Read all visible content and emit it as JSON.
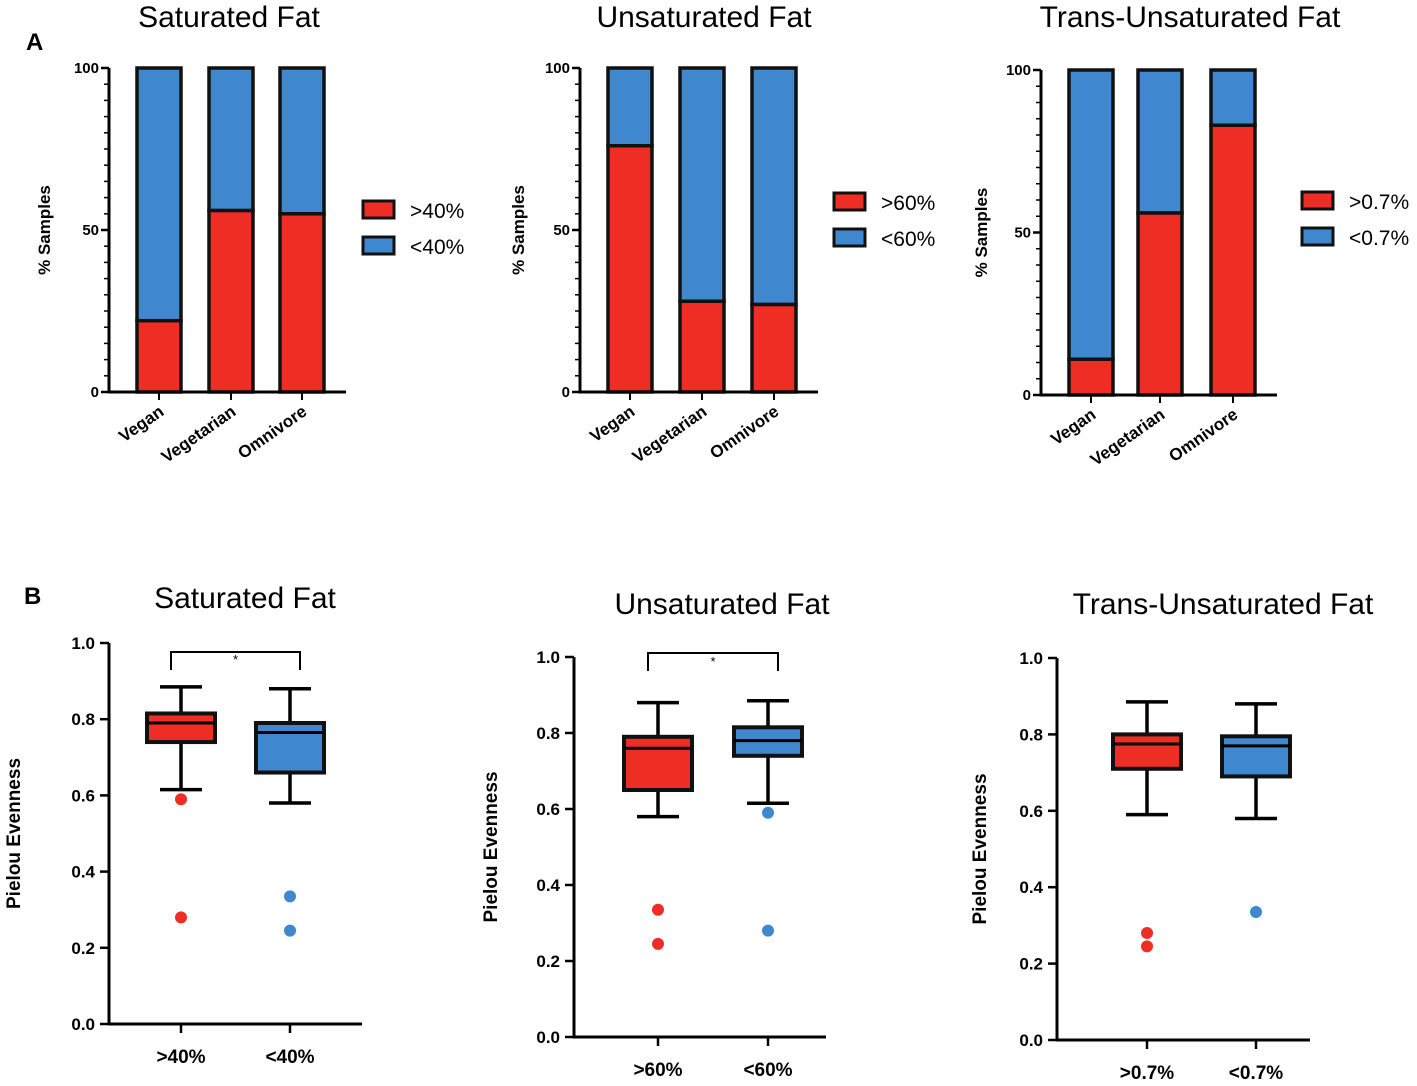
{
  "panels": {
    "a": "A",
    "b": "B"
  },
  "colors": {
    "red": "#ee2e24",
    "blue": "#3f87cf",
    "stroke": "#111111"
  },
  "chart_data": [
    {
      "type": "bar",
      "stacked": true,
      "panel": "A",
      "title": "Saturated Fat",
      "ylabel": "% Samples",
      "categories": [
        "Vegan",
        "Vegetarian",
        "Omnivore"
      ],
      "yticks": [
        "0",
        "50",
        "100"
      ],
      "ylim": [
        0,
        100
      ],
      "legend": ">40%",
      "legend2": "<40%",
      "series": [
        {
          "name": ">40%",
          "values": [
            22,
            56,
            55
          ]
        },
        {
          "name": "<40%",
          "values": [
            78,
            44,
            45
          ]
        }
      ]
    },
    {
      "type": "bar",
      "stacked": true,
      "panel": "A",
      "title": "Unsaturated Fat",
      "ylabel": "% Samples",
      "categories": [
        "Vegan",
        "Vegetarian",
        "Omnivore"
      ],
      "yticks": [
        "0",
        "50",
        "100"
      ],
      "ylim": [
        0,
        100
      ],
      "legend": ">60%",
      "legend2": "<60%",
      "series": [
        {
          "name": ">60%",
          "values": [
            76,
            28,
            27
          ]
        },
        {
          "name": "<60%",
          "values": [
            24,
            72,
            73
          ]
        }
      ]
    },
    {
      "type": "bar",
      "stacked": true,
      "panel": "A",
      "title": "Trans-Unsaturated Fat",
      "ylabel": "% Samples",
      "categories": [
        "Vegan",
        "Vegetarian",
        "Omnivore"
      ],
      "yticks": [
        "0",
        "50",
        "100"
      ],
      "ylim": [
        0,
        100
      ],
      "legend": ">0.7%",
      "legend2": "<0.7%",
      "series": [
        {
          "name": ">0.7%",
          "values": [
            11,
            56,
            83
          ]
        },
        {
          "name": "<0.7%",
          "values": [
            89,
            44,
            17
          ]
        }
      ]
    },
    {
      "type": "box",
      "panel": "B",
      "title": "Saturated Fat",
      "ylabel": "Pielou Evenness",
      "categories": [
        ">40%",
        "<40%"
      ],
      "yticks": [
        "0.0",
        "0.2",
        "0.4",
        "0.6",
        "0.8",
        "1.0"
      ],
      "ylim": [
        0,
        1.0
      ],
      "significance": "*",
      "boxes": [
        {
          "name": ">40%",
          "min": 0.615,
          "q1": 0.74,
          "median": 0.79,
          "q3": 0.815,
          "max": 0.885,
          "outliers": [
            0.59,
            0.28
          ]
        },
        {
          "name": "<40%",
          "min": 0.58,
          "q1": 0.66,
          "median": 0.765,
          "q3": 0.79,
          "max": 0.88,
          "outliers": [
            0.335,
            0.245
          ]
        }
      ]
    },
    {
      "type": "box",
      "panel": "B",
      "title": "Unsaturated Fat",
      "ylabel": "Pielou Evenness",
      "categories": [
        ">60%",
        "<60%"
      ],
      "yticks": [
        "0.0",
        "0.2",
        "0.4",
        "0.6",
        "0.8",
        "1.0"
      ],
      "ylim": [
        0,
        1.0
      ],
      "significance": "*",
      "boxes": [
        {
          "name": ">60%",
          "min": 0.58,
          "q1": 0.65,
          "median": 0.76,
          "q3": 0.79,
          "max": 0.88,
          "outliers": [
            0.335,
            0.245
          ]
        },
        {
          "name": "<60%",
          "min": 0.615,
          "q1": 0.74,
          "median": 0.78,
          "q3": 0.815,
          "max": 0.885,
          "outliers": [
            0.59,
            0.28
          ]
        }
      ]
    },
    {
      "type": "box",
      "panel": "B",
      "title": "Trans-Unsaturated Fat",
      "ylabel": "Pielou Evenness",
      "categories": [
        ">0.7%",
        "<0.7%"
      ],
      "yticks": [
        "0.0",
        "0.2",
        "0.4",
        "0.6",
        "0.8",
        "1.0"
      ],
      "ylim": [
        0,
        1.0
      ],
      "significance": "",
      "boxes": [
        {
          "name": ">0.7%",
          "min": 0.59,
          "q1": 0.71,
          "median": 0.775,
          "q3": 0.8,
          "max": 0.885,
          "outliers": [
            0.28,
            0.245
          ]
        },
        {
          "name": "<0.7%",
          "min": 0.58,
          "q1": 0.69,
          "median": 0.77,
          "q3": 0.795,
          "max": 0.88,
          "outliers": [
            0.335
          ]
        }
      ]
    }
  ]
}
